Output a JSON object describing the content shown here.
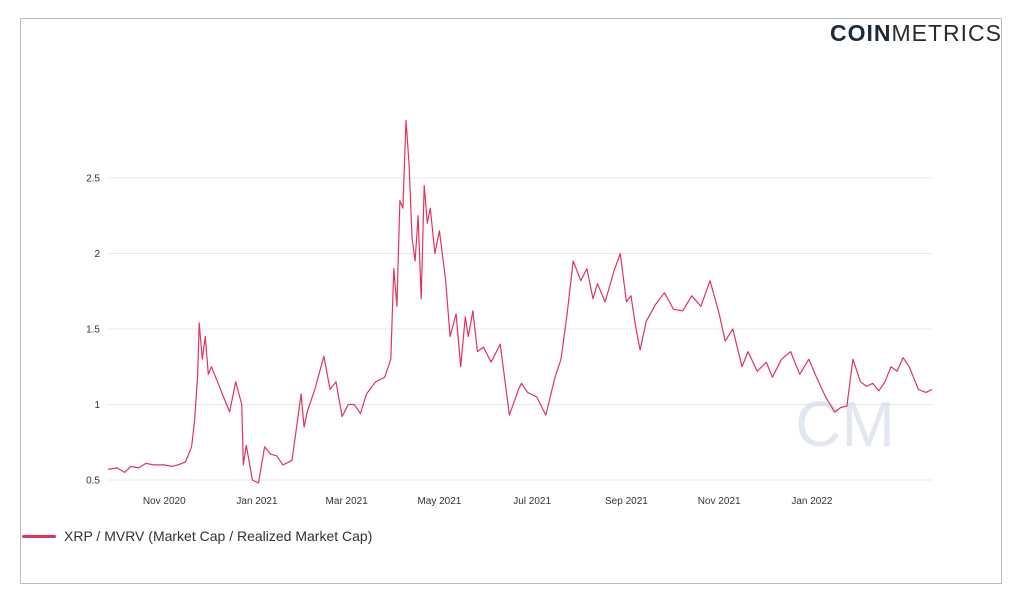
{
  "brand": {
    "bold": "COIN",
    "light": "METRICS",
    "watermark": "CM"
  },
  "colors": {
    "line": "#e0345f",
    "grid": "#e8e8e8",
    "watermark": "#c9d3e3"
  },
  "chart_data": {
    "type": "line",
    "title": "",
    "xlabel": "",
    "ylabel": "",
    "ylim": [
      0.5,
      2.95
    ],
    "xlim": [
      "2020-09-25",
      "2022-03-21"
    ],
    "grid": "horizontal",
    "legend_position": "bottom-left",
    "y_ticks": [
      "0.5",
      "1",
      "1.5",
      "2",
      "2.5"
    ],
    "x_ticks": [
      {
        "label": "Nov 2020",
        "date": "2020-11-01"
      },
      {
        "label": "Jan 2021",
        "date": "2021-01-01"
      },
      {
        "label": "Mar 2021",
        "date": "2021-03-01"
      },
      {
        "label": "May 2021",
        "date": "2021-05-01"
      },
      {
        "label": "Jul 2021",
        "date": "2021-07-01"
      },
      {
        "label": "Sep 2021",
        "date": "2021-09-01"
      },
      {
        "label": "Nov 2021",
        "date": "2021-11-01"
      },
      {
        "label": "Jan 2022",
        "date": "2022-01-01"
      }
    ],
    "series": [
      {
        "name": "XRP / MVRV (Market Cap / Realized Market Cap)",
        "x": [
          "2020-09-25",
          "2020-10-01",
          "2020-10-06",
          "2020-10-10",
          "2020-10-15",
          "2020-10-20",
          "2020-10-25",
          "2020-11-01",
          "2020-11-06",
          "2020-11-10",
          "2020-11-15",
          "2020-11-19",
          "2020-11-21",
          "2020-11-23",
          "2020-11-24",
          "2020-11-26",
          "2020-11-28",
          "2020-11-30",
          "2020-12-02",
          "2020-12-06",
          "2020-12-10",
          "2020-12-14",
          "2020-12-18",
          "2020-12-22",
          "2020-12-23",
          "2020-12-25",
          "2020-12-29",
          "2021-01-02",
          "2021-01-06",
          "2021-01-10",
          "2021-01-14",
          "2021-01-18",
          "2021-01-24",
          "2021-01-30",
          "2021-02-01",
          "2021-02-03",
          "2021-02-08",
          "2021-02-14",
          "2021-02-18",
          "2021-02-22",
          "2021-02-26",
          "2021-03-02",
          "2021-03-06",
          "2021-03-10",
          "2021-03-14",
          "2021-03-20",
          "2021-03-26",
          "2021-03-30",
          "2021-04-01",
          "2021-04-03",
          "2021-04-05",
          "2021-04-07",
          "2021-04-09",
          "2021-04-11",
          "2021-04-13",
          "2021-04-15",
          "2021-04-17",
          "2021-04-19",
          "2021-04-21",
          "2021-04-23",
          "2021-04-25",
          "2021-04-28",
          "2021-05-01",
          "2021-05-05",
          "2021-05-08",
          "2021-05-12",
          "2021-05-15",
          "2021-05-18",
          "2021-05-20",
          "2021-05-23",
          "2021-05-26",
          "2021-05-30",
          "2021-06-04",
          "2021-06-10",
          "2021-06-16",
          "2021-06-22",
          "2021-06-24",
          "2021-06-28",
          "2021-07-04",
          "2021-07-10",
          "2021-07-16",
          "2021-07-20",
          "2021-07-24",
          "2021-07-28",
          "2021-08-02",
          "2021-08-06",
          "2021-08-10",
          "2021-08-13",
          "2021-08-18",
          "2021-08-24",
          "2021-08-28",
          "2021-09-01",
          "2021-09-04",
          "2021-09-07",
          "2021-09-10",
          "2021-09-14",
          "2021-09-20",
          "2021-09-26",
          "2021-10-02",
          "2021-10-08",
          "2021-10-14",
          "2021-10-20",
          "2021-10-26",
          "2021-11-01",
          "2021-11-05",
          "2021-11-10",
          "2021-11-16",
          "2021-11-20",
          "2021-11-26",
          "2021-12-02",
          "2021-12-06",
          "2021-12-12",
          "2021-12-18",
          "2021-12-24",
          "2021-12-30",
          "2022-01-04",
          "2022-01-10",
          "2022-01-16",
          "2022-01-20",
          "2022-01-24",
          "2022-01-28",
          "2022-02-02",
          "2022-02-06",
          "2022-02-10",
          "2022-02-14",
          "2022-02-18",
          "2022-02-22",
          "2022-02-26",
          "2022-03-02",
          "2022-03-06",
          "2022-03-12",
          "2022-03-17",
          "2022-03-21"
        ],
        "y": [
          0.57,
          0.58,
          0.55,
          0.59,
          0.58,
          0.61,
          0.6,
          0.6,
          0.59,
          0.6,
          0.62,
          0.72,
          0.9,
          1.2,
          1.54,
          1.3,
          1.45,
          1.2,
          1.25,
          1.15,
          1.05,
          0.95,
          1.15,
          1.0,
          0.6,
          0.73,
          0.5,
          0.48,
          0.72,
          0.67,
          0.66,
          0.6,
          0.63,
          1.07,
          0.85,
          0.95,
          1.1,
          1.32,
          1.1,
          1.15,
          0.92,
          1.0,
          1.0,
          0.94,
          1.07,
          1.15,
          1.18,
          1.3,
          1.9,
          1.65,
          2.35,
          2.3,
          2.88,
          2.6,
          2.1,
          1.95,
          2.25,
          1.7,
          2.45,
          2.2,
          2.3,
          2.0,
          2.15,
          1.83,
          1.45,
          1.6,
          1.25,
          1.58,
          1.45,
          1.62,
          1.35,
          1.38,
          1.28,
          1.4,
          0.93,
          1.1,
          1.14,
          1.08,
          1.05,
          0.93,
          1.18,
          1.3,
          1.6,
          1.95,
          1.82,
          1.9,
          1.7,
          1.8,
          1.68,
          1.89,
          2.0,
          1.68,
          1.72,
          1.52,
          1.36,
          1.55,
          1.66,
          1.74,
          1.63,
          1.62,
          1.72,
          1.65,
          1.82,
          1.6,
          1.42,
          1.5,
          1.25,
          1.35,
          1.22,
          1.28,
          1.18,
          1.3,
          1.35,
          1.2,
          1.3,
          1.18,
          1.05,
          0.95,
          0.98,
          0.99,
          1.3,
          1.15,
          1.12,
          1.14,
          1.09,
          1.15,
          1.25,
          1.22,
          1.31,
          1.25,
          1.1,
          1.08,
          1.1
        ]
      }
    ]
  }
}
